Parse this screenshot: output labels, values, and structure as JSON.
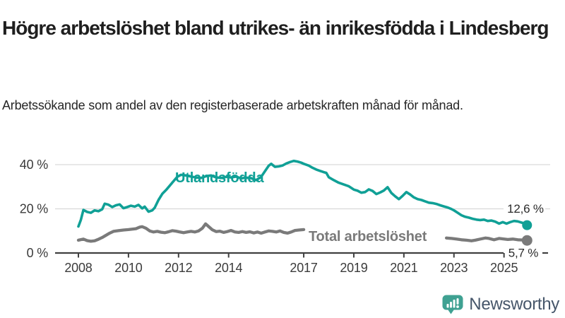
{
  "header": {
    "title": "Högre arbetslöshet bland utrikes- än inrikesfödda i Lindesberg",
    "subtitle": "Arbetssökande som andel av den registerbaserade arbetskraften månad för månad."
  },
  "chart_data": {
    "type": "line",
    "title": "",
    "xlabel": "",
    "ylabel": "",
    "grid": "horizontal",
    "legend_position": "inline-labels",
    "xlim": [
      2007.9,
      2026.3
    ],
    "ylim": [
      0,
      44
    ],
    "x_ticks": [
      {
        "value": 2008,
        "label": "2008"
      },
      {
        "value": 2010,
        "label": "2010"
      },
      {
        "value": 2012,
        "label": "2012"
      },
      {
        "value": 2014,
        "label": "2014"
      },
      {
        "value": 2017,
        "label": "2017"
      },
      {
        "value": 2019,
        "label": "2019"
      },
      {
        "value": 2021,
        "label": "2021"
      },
      {
        "value": 2023,
        "label": "2023"
      },
      {
        "value": 2025,
        "label": "2025"
      }
    ],
    "y_ticks": [
      {
        "value": 0,
        "label": "0 %"
      },
      {
        "value": 20,
        "label": "20 %"
      },
      {
        "value": 40,
        "label": "40 %"
      }
    ],
    "series": [
      {
        "name": "Utlandsfödda",
        "color": "#10a096",
        "end_label": "12,6 %",
        "end_value": 12.6,
        "points": [
          [
            2008,
            12
          ],
          [
            2008.1,
            15
          ],
          [
            2008.2,
            19.5
          ],
          [
            2008.35,
            18.6
          ],
          [
            2008.5,
            18.2
          ],
          [
            2008.65,
            19.3
          ],
          [
            2008.8,
            18.9
          ],
          [
            2008.95,
            19.8
          ],
          [
            2009.05,
            22.3
          ],
          [
            2009.2,
            21.9
          ],
          [
            2009.35,
            20.8
          ],
          [
            2009.5,
            21.6
          ],
          [
            2009.65,
            22
          ],
          [
            2009.8,
            20.3
          ],
          [
            2009.95,
            20.8
          ],
          [
            2010.1,
            21.4
          ],
          [
            2010.25,
            21
          ],
          [
            2010.4,
            21.8
          ],
          [
            2010.55,
            20.2
          ],
          [
            2010.65,
            21
          ],
          [
            2010.8,
            18.7
          ],
          [
            2010.95,
            19.3
          ],
          [
            2011.05,
            20.5
          ],
          [
            2011.2,
            24
          ],
          [
            2011.35,
            26.8
          ],
          [
            2011.5,
            28.5
          ],
          [
            2011.65,
            30.5
          ],
          [
            2011.8,
            32.5
          ],
          [
            2011.95,
            34.5
          ],
          [
            2012.1,
            35.4
          ],
          [
            2012.3,
            35.1
          ],
          [
            2012.5,
            34.6
          ],
          [
            2012.7,
            34.2
          ],
          [
            2012.9,
            34
          ],
          [
            2013.1,
            34.8
          ],
          [
            2013.3,
            35.1
          ],
          [
            2013.5,
            34.2
          ],
          [
            2013.7,
            34
          ],
          [
            2013.9,
            34.5
          ],
          [
            2014.1,
            34.2
          ],
          [
            2014.3,
            34.6
          ],
          [
            2014.5,
            33.8
          ],
          [
            2014.7,
            34.1
          ],
          [
            2014.9,
            33.9
          ],
          [
            2015.1,
            33
          ],
          [
            2015.3,
            34.5
          ],
          [
            2015.45,
            37
          ],
          [
            2015.6,
            39.5
          ],
          [
            2015.7,
            40.4
          ],
          [
            2015.85,
            39
          ],
          [
            2016,
            39.2
          ],
          [
            2016.15,
            39.6
          ],
          [
            2016.3,
            40.5
          ],
          [
            2016.45,
            41.2
          ],
          [
            2016.6,
            41.7
          ],
          [
            2016.75,
            41.4
          ],
          [
            2016.9,
            40.9
          ],
          [
            2017,
            40.4
          ],
          [
            2017.2,
            39.6
          ],
          [
            2017.35,
            38.6
          ],
          [
            2017.5,
            37.8
          ],
          [
            2017.65,
            37.2
          ],
          [
            2017.8,
            36.6
          ],
          [
            2017.9,
            36.3
          ],
          [
            2018,
            34.3
          ],
          [
            2018.2,
            33
          ],
          [
            2018.4,
            31.8
          ],
          [
            2018.6,
            31
          ],
          [
            2018.8,
            30.2
          ],
          [
            2019,
            28.7
          ],
          [
            2019.15,
            28.2
          ],
          [
            2019.3,
            27.3
          ],
          [
            2019.45,
            27.6
          ],
          [
            2019.6,
            28.8
          ],
          [
            2019.75,
            28.1
          ],
          [
            2019.9,
            26.7
          ],
          [
            2020.05,
            27.4
          ],
          [
            2020.2,
            28.3
          ],
          [
            2020.35,
            29.8
          ],
          [
            2020.5,
            27.2
          ],
          [
            2020.65,
            25.7
          ],
          [
            2020.8,
            24.4
          ],
          [
            2020.95,
            25.9
          ],
          [
            2021.1,
            27.6
          ],
          [
            2021.25,
            26.5
          ],
          [
            2021.4,
            25.2
          ],
          [
            2021.55,
            24.4
          ],
          [
            2021.7,
            24
          ],
          [
            2021.85,
            23.4
          ],
          [
            2022,
            22.8
          ],
          [
            2022.15,
            22.6
          ],
          [
            2022.3,
            22.2
          ],
          [
            2022.45,
            21.6
          ],
          [
            2022.6,
            21.1
          ],
          [
            2022.75,
            20.6
          ],
          [
            2022.9,
            19.9
          ],
          [
            2023,
            19.3
          ],
          [
            2023.15,
            18.2
          ],
          [
            2023.3,
            17.1
          ],
          [
            2023.45,
            16.4
          ],
          [
            2023.6,
            16
          ],
          [
            2023.75,
            15.5
          ],
          [
            2023.9,
            15.1
          ],
          [
            2024.05,
            14.9
          ],
          [
            2024.2,
            15.1
          ],
          [
            2024.35,
            14.5
          ],
          [
            2024.5,
            14.7
          ],
          [
            2024.65,
            14.2
          ],
          [
            2024.8,
            13.3
          ],
          [
            2024.95,
            14
          ],
          [
            2025.1,
            13.3
          ],
          [
            2025.25,
            14
          ],
          [
            2025.4,
            14.5
          ],
          [
            2025.55,
            14.3
          ],
          [
            2025.75,
            13.6
          ],
          [
            2025.92,
            12.6
          ]
        ]
      },
      {
        "name": "Total arbetslöshet",
        "color": "#7a7a7a",
        "end_label": "5,7 %",
        "end_value": 5.7,
        "points": [
          [
            2008,
            5.8
          ],
          [
            2008.2,
            6.3
          ],
          [
            2008.35,
            5.6
          ],
          [
            2008.5,
            5.3
          ],
          [
            2008.65,
            5.5
          ],
          [
            2008.8,
            6.2
          ],
          [
            2008.95,
            7
          ],
          [
            2009.1,
            8
          ],
          [
            2009.25,
            9
          ],
          [
            2009.4,
            9.8
          ],
          [
            2009.6,
            10.1
          ],
          [
            2009.8,
            10.4
          ],
          [
            2010,
            10.6
          ],
          [
            2010.15,
            10.8
          ],
          [
            2010.3,
            11
          ],
          [
            2010.45,
            11.7
          ],
          [
            2010.55,
            11.9
          ],
          [
            2010.7,
            11.2
          ],
          [
            2010.85,
            10
          ],
          [
            2011,
            9.5
          ],
          [
            2011.15,
            9.8
          ],
          [
            2011.3,
            9.4
          ],
          [
            2011.45,
            9.2
          ],
          [
            2011.6,
            9.6
          ],
          [
            2011.75,
            10.1
          ],
          [
            2011.9,
            9.9
          ],
          [
            2012.05,
            9.5
          ],
          [
            2012.2,
            9.2
          ],
          [
            2012.35,
            9.5
          ],
          [
            2012.5,
            9.8
          ],
          [
            2012.65,
            9.5
          ],
          [
            2012.8,
            10
          ],
          [
            2012.95,
            11.2
          ],
          [
            2013.08,
            13.2
          ],
          [
            2013.2,
            12
          ],
          [
            2013.35,
            10.5
          ],
          [
            2013.5,
            9.7
          ],
          [
            2013.65,
            9.9
          ],
          [
            2013.8,
            9.3
          ],
          [
            2013.95,
            9.7
          ],
          [
            2014.1,
            10.2
          ],
          [
            2014.25,
            9.5
          ],
          [
            2014.4,
            9.3
          ],
          [
            2014.55,
            9.7
          ],
          [
            2014.7,
            9.3
          ],
          [
            2014.85,
            9.6
          ],
          [
            2015,
            9.1
          ],
          [
            2015.15,
            9.5
          ],
          [
            2015.3,
            9
          ],
          [
            2015.45,
            9.5
          ],
          [
            2015.6,
            10
          ],
          [
            2015.75,
            9.8
          ],
          [
            2015.9,
            9.5
          ],
          [
            2016.05,
            10
          ],
          [
            2016.2,
            9.3
          ],
          [
            2016.35,
            9
          ],
          [
            2016.5,
            9.5
          ],
          [
            2016.65,
            10.2
          ],
          [
            2016.8,
            10.4
          ],
          [
            2017,
            10.6
          ],
          [
            2022.7,
            6.8
          ],
          [
            2022.9,
            6.6
          ],
          [
            2023.1,
            6.3
          ],
          [
            2023.3,
            6
          ],
          [
            2023.5,
            5.8
          ],
          [
            2023.7,
            5.5
          ],
          [
            2023.85,
            5.8
          ],
          [
            2024.05,
            6.3
          ],
          [
            2024.25,
            6.8
          ],
          [
            2024.4,
            6.6
          ],
          [
            2024.6,
            6
          ],
          [
            2024.8,
            6.6
          ],
          [
            2025,
            6.3
          ],
          [
            2025.15,
            6.1
          ],
          [
            2025.35,
            6.3
          ],
          [
            2025.55,
            6
          ],
          [
            2025.75,
            5.9
          ],
          [
            2025.92,
            5.7
          ]
        ]
      }
    ],
    "colors": {
      "grid": "#d9d9d9",
      "axis": "#404040",
      "tick_label": "#3b3b3b",
      "end_label": "#2b2b2b"
    }
  },
  "footer": {
    "brand": "Newsworthy",
    "logo_icon": "bar-chart-speech-bubble-icon",
    "brand_icon_color": "#3fa192",
    "brand_text_color": "#46566a"
  }
}
